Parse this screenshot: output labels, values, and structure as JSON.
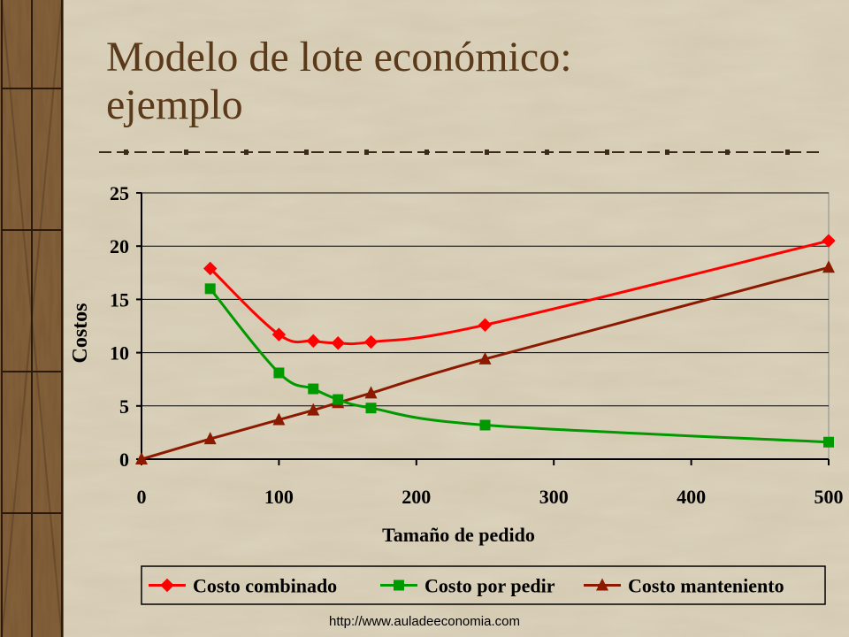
{
  "slide": {
    "title_line1": "Modelo de lote económico:",
    "title_line2": "ejemplo",
    "footer_url": "http://www.auladeeconomia.com"
  },
  "colors": {
    "background": "#dcd3bd",
    "title": "#5a3a1a",
    "combined": "#ff0000",
    "ordering": "#009900",
    "holding": "#8b1a00",
    "wood": "#6b4a2a"
  },
  "chart_data": {
    "type": "line",
    "title": "",
    "xlabel": "Tamaño de pedido",
    "ylabel": "Costos",
    "xlim": [
      0,
      500
    ],
    "ylim": [
      0,
      25
    ],
    "x_tick_labels": [
      "0",
      "100",
      "200",
      "300",
      "400",
      "500"
    ],
    "x_tick_values": [
      0,
      100,
      200,
      300,
      400,
      500
    ],
    "y_tick_labels": [
      "0",
      "5",
      "10",
      "15",
      "20",
      "25"
    ],
    "y_tick_values": [
      0,
      5,
      10,
      15,
      20,
      25
    ],
    "grid": true,
    "legend_position": "bottom",
    "series": [
      {
        "name": "Costo combinado",
        "color": "#ff0000",
        "marker": "diamond",
        "points": [
          [
            50,
            17.9
          ],
          [
            100,
            11.7
          ],
          [
            125,
            11.1
          ],
          [
            143,
            10.9
          ],
          [
            167,
            11.0
          ],
          [
            250,
            12.6
          ],
          [
            500,
            20.5
          ]
        ]
      },
      {
        "name": "Costo por pedir",
        "color": "#009900",
        "marker": "square",
        "points": [
          [
            50,
            16.0
          ],
          [
            100,
            8.1
          ],
          [
            125,
            6.6
          ],
          [
            143,
            5.6
          ],
          [
            167,
            4.8
          ],
          [
            250,
            3.2
          ],
          [
            500,
            1.6
          ]
        ]
      },
      {
        "name": "Costo manteniento",
        "color": "#8b1a00",
        "marker": "triangle",
        "points": [
          [
            0,
            0
          ],
          [
            50,
            1.9
          ],
          [
            100,
            3.7
          ],
          [
            125,
            4.6
          ],
          [
            143,
            5.3
          ],
          [
            167,
            6.2
          ],
          [
            250,
            9.4
          ],
          [
            500,
            18.0
          ]
        ]
      }
    ]
  }
}
